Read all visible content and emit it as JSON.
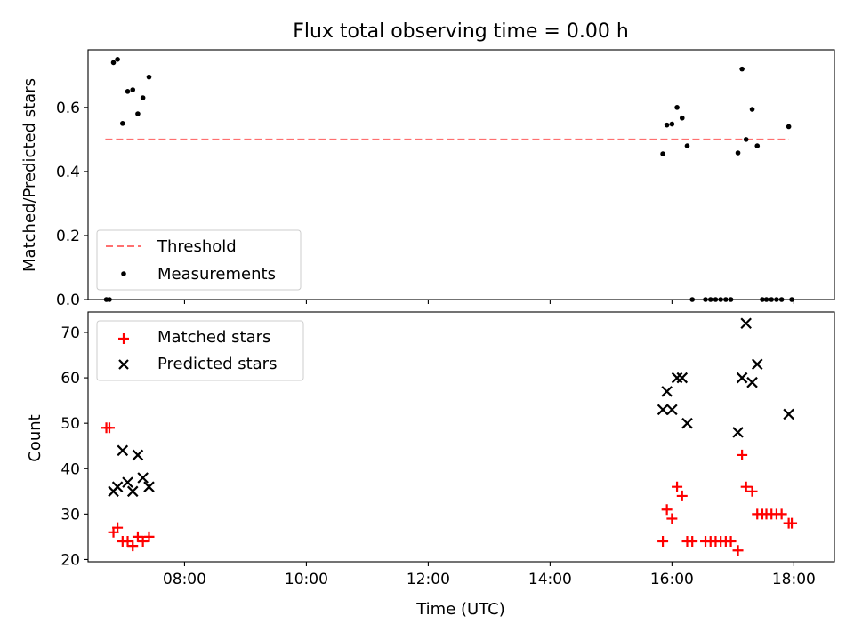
{
  "title": "Flux total observing time = 0.00 h",
  "chart_data": [
    {
      "type": "scatter",
      "ylabel": "Matched/Predicted stars",
      "xlim": [
        "06:25",
        "18:40"
      ],
      "ylim": [
        0,
        0.78
      ],
      "yticks": [
        0.0,
        0.2,
        0.4,
        0.6
      ],
      "ytick_labels": [
        "0.0",
        "0.2",
        "0.4",
        "0.6"
      ],
      "legend_position": "lower-left",
      "threshold": {
        "name": "Threshold",
        "value": 0.5,
        "x_range": [
          "06:42",
          "17:55"
        ],
        "color": "#ff7070",
        "style": "dashed"
      },
      "series": [
        {
          "name": "Measurements",
          "color": "#000000",
          "marker": "dot",
          "points": [
            [
              "06:43",
              0.0
            ],
            [
              "06:46",
              0.0
            ],
            [
              "06:50",
              0.74
            ],
            [
              "06:54",
              0.75
            ],
            [
              "06:59",
              0.55
            ],
            [
              "07:04",
              0.65
            ],
            [
              "07:09",
              0.655
            ],
            [
              "07:14",
              0.58
            ],
            [
              "07:19",
              0.63
            ],
            [
              "07:25",
              0.695
            ],
            [
              "15:51",
              0.455
            ],
            [
              "15:55",
              0.545
            ],
            [
              "16:00",
              0.548
            ],
            [
              "16:05",
              0.6
            ],
            [
              "16:10",
              0.567
            ],
            [
              "16:15",
              0.48
            ],
            [
              "16:20",
              0.0
            ],
            [
              "16:33",
              0.0
            ],
            [
              "16:38",
              0.0
            ],
            [
              "16:43",
              0.0
            ],
            [
              "16:48",
              0.0
            ],
            [
              "16:53",
              0.0
            ],
            [
              "16:58",
              0.0
            ],
            [
              "17:05",
              0.458
            ],
            [
              "17:09",
              0.72
            ],
            [
              "17:13",
              0.5
            ],
            [
              "17:19",
              0.594
            ],
            [
              "17:24",
              0.48
            ],
            [
              "17:29",
              0.0
            ],
            [
              "17:33",
              0.0
            ],
            [
              "17:38",
              0.0
            ],
            [
              "17:43",
              0.0
            ],
            [
              "17:48",
              0.0
            ],
            [
              "17:55",
              0.54
            ],
            [
              "17:58",
              0.0
            ]
          ]
        }
      ]
    },
    {
      "type": "scatter",
      "xlabel": "Time (UTC)",
      "ylabel": "Count",
      "xlim": [
        "06:25",
        "18:40"
      ],
      "ylim": [
        19.5,
        74.5
      ],
      "xticks": [
        "08:00",
        "10:00",
        "12:00",
        "14:00",
        "16:00",
        "18:00"
      ],
      "yticks": [
        20,
        30,
        40,
        50,
        60,
        70
      ],
      "legend_position": "upper-left",
      "series": [
        {
          "name": "Matched stars",
          "color": "#ff0000",
          "marker": "plus",
          "points": [
            [
              "06:43",
              49
            ],
            [
              "06:46",
              49
            ],
            [
              "06:50",
              26
            ],
            [
              "06:54",
              27
            ],
            [
              "06:59",
              24
            ],
            [
              "07:04",
              24
            ],
            [
              "07:09",
              23
            ],
            [
              "07:14",
              25
            ],
            [
              "07:19",
              24
            ],
            [
              "07:25",
              25
            ],
            [
              "15:51",
              24
            ],
            [
              "15:55",
              31
            ],
            [
              "16:00",
              29
            ],
            [
              "16:05",
              36
            ],
            [
              "16:10",
              34
            ],
            [
              "16:15",
              24
            ],
            [
              "16:20",
              24
            ],
            [
              "16:33",
              24
            ],
            [
              "16:38",
              24
            ],
            [
              "16:43",
              24
            ],
            [
              "16:48",
              24
            ],
            [
              "16:53",
              24
            ],
            [
              "16:58",
              24
            ],
            [
              "17:05",
              22
            ],
            [
              "17:09",
              43
            ],
            [
              "17:13",
              36
            ],
            [
              "17:19",
              35
            ],
            [
              "17:24",
              30
            ],
            [
              "17:29",
              30
            ],
            [
              "17:33",
              30
            ],
            [
              "17:38",
              30
            ],
            [
              "17:43",
              30
            ],
            [
              "17:48",
              30
            ],
            [
              "17:55",
              28
            ],
            [
              "17:58",
              28
            ]
          ]
        },
        {
          "name": "Predicted stars",
          "color": "#000000",
          "marker": "x",
          "points": [
            [
              "06:50",
              35
            ],
            [
              "06:54",
              36
            ],
            [
              "06:59",
              44
            ],
            [
              "07:04",
              37
            ],
            [
              "07:09",
              35
            ],
            [
              "07:14",
              43
            ],
            [
              "07:19",
              38
            ],
            [
              "07:25",
              36
            ],
            [
              "15:51",
              53
            ],
            [
              "15:55",
              57
            ],
            [
              "16:00",
              53
            ],
            [
              "16:05",
              60
            ],
            [
              "16:10",
              60
            ],
            [
              "16:15",
              50
            ],
            [
              "17:05",
              48
            ],
            [
              "17:09",
              60
            ],
            [
              "17:13",
              72
            ],
            [
              "17:19",
              59
            ],
            [
              "17:24",
              63
            ],
            [
              "17:55",
              52
            ]
          ]
        }
      ]
    }
  ]
}
